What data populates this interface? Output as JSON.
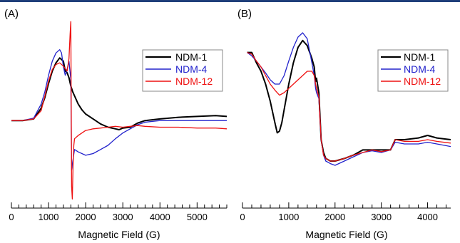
{
  "chart_data": [
    {
      "type": "line",
      "panel_label": "(A)",
      "xlabel": "Magnetic Field (G)",
      "ylabel": "",
      "xlim": [
        0,
        5800
      ],
      "ylim": [
        -1.0,
        1.22
      ],
      "xticks": [
        0,
        1000,
        2000,
        3000,
        4000,
        5000
      ],
      "legend_position": "top-right",
      "grid": false,
      "series": [
        {
          "name": "NDM-1",
          "color": "#000000",
          "x": [
            0,
            300,
            600,
            800,
            900,
            1000,
            1100,
            1200,
            1300,
            1400,
            1450,
            1500,
            1550,
            1600,
            1650,
            1700,
            1800,
            1900,
            2000,
            2200,
            2400,
            2600,
            2800,
            2900,
            3000,
            3200,
            3400,
            3600,
            4000,
            4500,
            5000,
            5500,
            5800
          ],
          "y": [
            0,
            0,
            0.02,
            0.15,
            0.28,
            0.45,
            0.6,
            0.7,
            0.76,
            0.72,
            0.6,
            0.58,
            0.52,
            0.42,
            0.35,
            0.3,
            0.2,
            0.13,
            0.08,
            0.02,
            -0.04,
            -0.08,
            -0.1,
            -0.11,
            -0.09,
            -0.08,
            -0.03,
            0.0,
            0.02,
            0.04,
            0.05,
            0.06,
            0.05
          ]
        },
        {
          "name": "NDM-4",
          "color": "#2222cc",
          "x": [
            0,
            300,
            600,
            800,
            900,
            1000,
            1100,
            1200,
            1300,
            1350,
            1400,
            1450,
            1500,
            1550,
            1600,
            1620,
            1650,
            1700,
            1800,
            2000,
            2200,
            2400,
            2600,
            2800,
            3000,
            3200,
            3400,
            3600,
            4000,
            4500,
            5000,
            5500,
            5800
          ],
          "y": [
            0,
            0,
            0.03,
            0.2,
            0.35,
            0.55,
            0.72,
            0.82,
            0.86,
            0.82,
            0.65,
            0.55,
            0.62,
            0.72,
            0.5,
            -0.6,
            -0.5,
            -0.35,
            -0.38,
            -0.42,
            -0.4,
            -0.35,
            -0.3,
            -0.22,
            -0.15,
            -0.1,
            -0.05,
            -0.02,
            0.0,
            0.0,
            0.0,
            0.0,
            0.0
          ]
        },
        {
          "name": "NDM-12",
          "color": "#ee1111",
          "x": [
            0,
            300,
            600,
            800,
            900,
            1000,
            1100,
            1200,
            1300,
            1400,
            1500,
            1550,
            1580,
            1600,
            1620,
            1640,
            1660,
            1680,
            1700,
            1800,
            1900,
            2000,
            2200,
            2400,
            2600,
            2800,
            3000,
            3200,
            3400,
            3600,
            4000,
            4500,
            5000,
            5500,
            5800
          ],
          "y": [
            0,
            0,
            0.02,
            0.12,
            0.3,
            0.48,
            0.62,
            0.68,
            0.7,
            0.66,
            0.6,
            0.75,
            1.05,
            1.2,
            -0.8,
            -0.95,
            -0.55,
            -0.3,
            -0.22,
            -0.18,
            -0.15,
            -0.12,
            -0.1,
            -0.09,
            -0.08,
            -0.07,
            -0.08,
            -0.07,
            -0.06,
            -0.07,
            -0.08,
            -0.08,
            -0.09,
            -0.09,
            -0.1
          ]
        }
      ]
    },
    {
      "type": "line",
      "panel_label": "(B)",
      "xlabel": "Magnetic Field (G)",
      "ylabel": "",
      "xlim": [
        0,
        4500
      ],
      "ylim": [
        -1.0,
        1.0
      ],
      "xticks": [
        0,
        1000,
        2000,
        3000,
        4000
      ],
      "legend_position": "top-right",
      "grid": false,
      "series": [
        {
          "name": "NDM-1",
          "color": "#000000",
          "x": [
            100,
            200,
            300,
            400,
            500,
            600,
            700,
            750,
            800,
            850,
            900,
            1000,
            1100,
            1200,
            1300,
            1400,
            1500,
            1550,
            1580,
            1600,
            1650,
            1700,
            1750,
            1800,
            1900,
            2000,
            2200,
            2400,
            2600,
            2800,
            3000,
            3200,
            3300,
            3500,
            3800,
            4000,
            4200,
            4500
          ],
          "y": [
            0.72,
            0.72,
            0.6,
            0.5,
            0.35,
            0.15,
            -0.1,
            -0.22,
            -0.2,
            -0.1,
            0.05,
            0.35,
            0.6,
            0.78,
            0.86,
            0.8,
            0.65,
            0.55,
            0.38,
            0.42,
            0.25,
            -0.3,
            -0.45,
            -0.52,
            -0.55,
            -0.55,
            -0.52,
            -0.48,
            -0.42,
            -0.42,
            -0.42,
            -0.42,
            -0.3,
            -0.3,
            -0.28,
            -0.25,
            -0.28,
            -0.3
          ]
        },
        {
          "name": "NDM-4",
          "color": "#2222cc",
          "x": [
            100,
            200,
            300,
            400,
            500,
            600,
            700,
            800,
            900,
            1000,
            1100,
            1200,
            1300,
            1400,
            1500,
            1550,
            1580,
            1600,
            1650,
            1700,
            1750,
            1800,
            1900,
            2000,
            2200,
            2400,
            2600,
            2800,
            3000,
            3200,
            3300,
            3500,
            3800,
            4000,
            4200,
            4500
          ],
          "y": [
            0.72,
            0.68,
            0.62,
            0.55,
            0.48,
            0.4,
            0.35,
            0.35,
            0.45,
            0.62,
            0.78,
            0.9,
            0.95,
            0.88,
            0.6,
            0.45,
            0.3,
            0.25,
            0.18,
            -0.3,
            -0.48,
            -0.55,
            -0.58,
            -0.6,
            -0.55,
            -0.5,
            -0.45,
            -0.43,
            -0.45,
            -0.42,
            -0.33,
            -0.35,
            -0.35,
            -0.33,
            -0.35,
            -0.38
          ]
        },
        {
          "name": "NDM-12",
          "color": "#ee1111",
          "x": [
            100,
            200,
            300,
            400,
            500,
            600,
            700,
            800,
            900,
            1000,
            1100,
            1200,
            1300,
            1400,
            1500,
            1550,
            1580,
            1600,
            1650,
            1700,
            1750,
            1800,
            1900,
            2000,
            2200,
            2400,
            2600,
            2800,
            3000,
            3200,
            3300,
            3500,
            3800,
            4000,
            4200,
            4500
          ],
          "y": [
            0.72,
            0.7,
            0.62,
            0.55,
            0.45,
            0.35,
            0.28,
            0.22,
            0.25,
            0.3,
            0.35,
            0.4,
            0.45,
            0.5,
            0.5,
            0.45,
            0.35,
            0.3,
            0.2,
            -0.3,
            -0.48,
            -0.52,
            -0.55,
            -0.55,
            -0.52,
            -0.48,
            -0.45,
            -0.42,
            -0.44,
            -0.42,
            -0.3,
            -0.32,
            -0.32,
            -0.3,
            -0.32,
            -0.34
          ]
        }
      ]
    }
  ]
}
